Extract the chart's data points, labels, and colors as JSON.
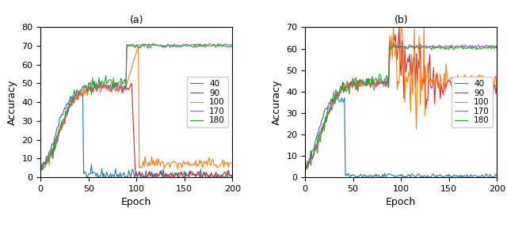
{
  "subplot_a": {
    "xlabel": "Epoch",
    "ylabel": "Accuracy",
    "xlim": [
      0,
      200
    ],
    "ylim": [
      0,
      80
    ],
    "yticks": [
      0,
      10,
      20,
      30,
      40,
      50,
      60,
      70,
      80
    ],
    "xticks": [
      0,
      50,
      100,
      150,
      200
    ],
    "legend_labels": [
      "40",
      "90",
      "100",
      "170",
      "180"
    ],
    "colors": [
      "#1f77b4",
      "#d62728",
      "#ff7f0e",
      "#9467bd",
      "#2ca02c"
    ]
  },
  "subplot_b": {
    "xlabel": "Epoch",
    "ylabel": "Accuracy",
    "xlim": [
      0,
      200
    ],
    "ylim": [
      0,
      70
    ],
    "yticks": [
      0,
      10,
      20,
      30,
      40,
      50,
      60,
      70
    ],
    "xticks": [
      0,
      50,
      100,
      150,
      200
    ],
    "legend_labels": [
      "40",
      "90",
      "100",
      "170",
      "180"
    ],
    "colors": [
      "#1f77b4",
      "#d62728",
      "#ff7f0e",
      "#9467bd",
      "#2ca02c"
    ]
  },
  "figure_label_a": "(a)",
  "figure_label_b": "(b)",
  "linewidth": 0.8,
  "noise_seed": 42
}
